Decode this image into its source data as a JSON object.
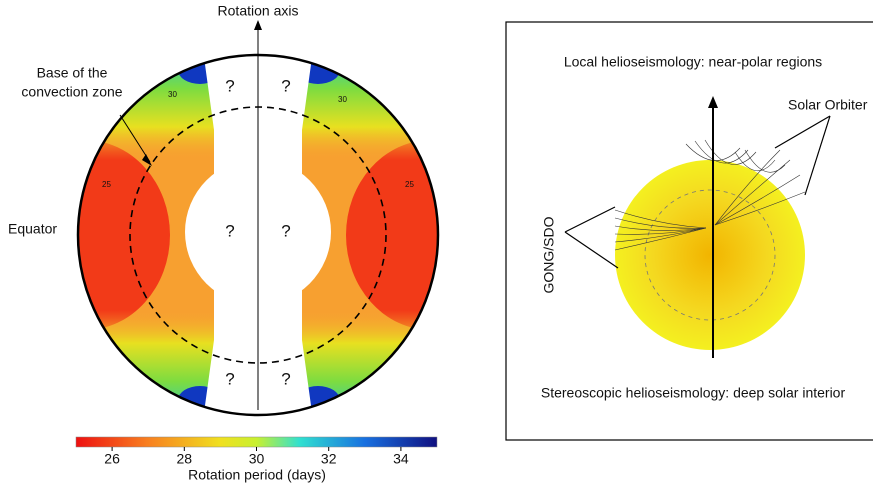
{
  "left_panel": {
    "axis_label": "Rotation axis",
    "annotation_lines": [
      "Base of the",
      "convection zone"
    ],
    "equator_label": "Equator",
    "unknown_marks": [
      "?",
      "?",
      "?",
      "?",
      "?",
      "?"
    ],
    "contour_labels": [
      "30",
      "30",
      "25",
      "25"
    ],
    "colorbar": {
      "label": "Rotation period (days)",
      "range": [
        25,
        35
      ],
      "ticks": [
        26,
        28,
        30,
        32,
        34
      ]
    }
  },
  "right_panel": {
    "top_text": "Local helioseismology: near-polar regions",
    "bottom_text": "Stereoscopic helioseismology: deep solar interior",
    "instrument_labels": [
      "Solar Orbiter",
      "GONG/SDO"
    ]
  }
}
